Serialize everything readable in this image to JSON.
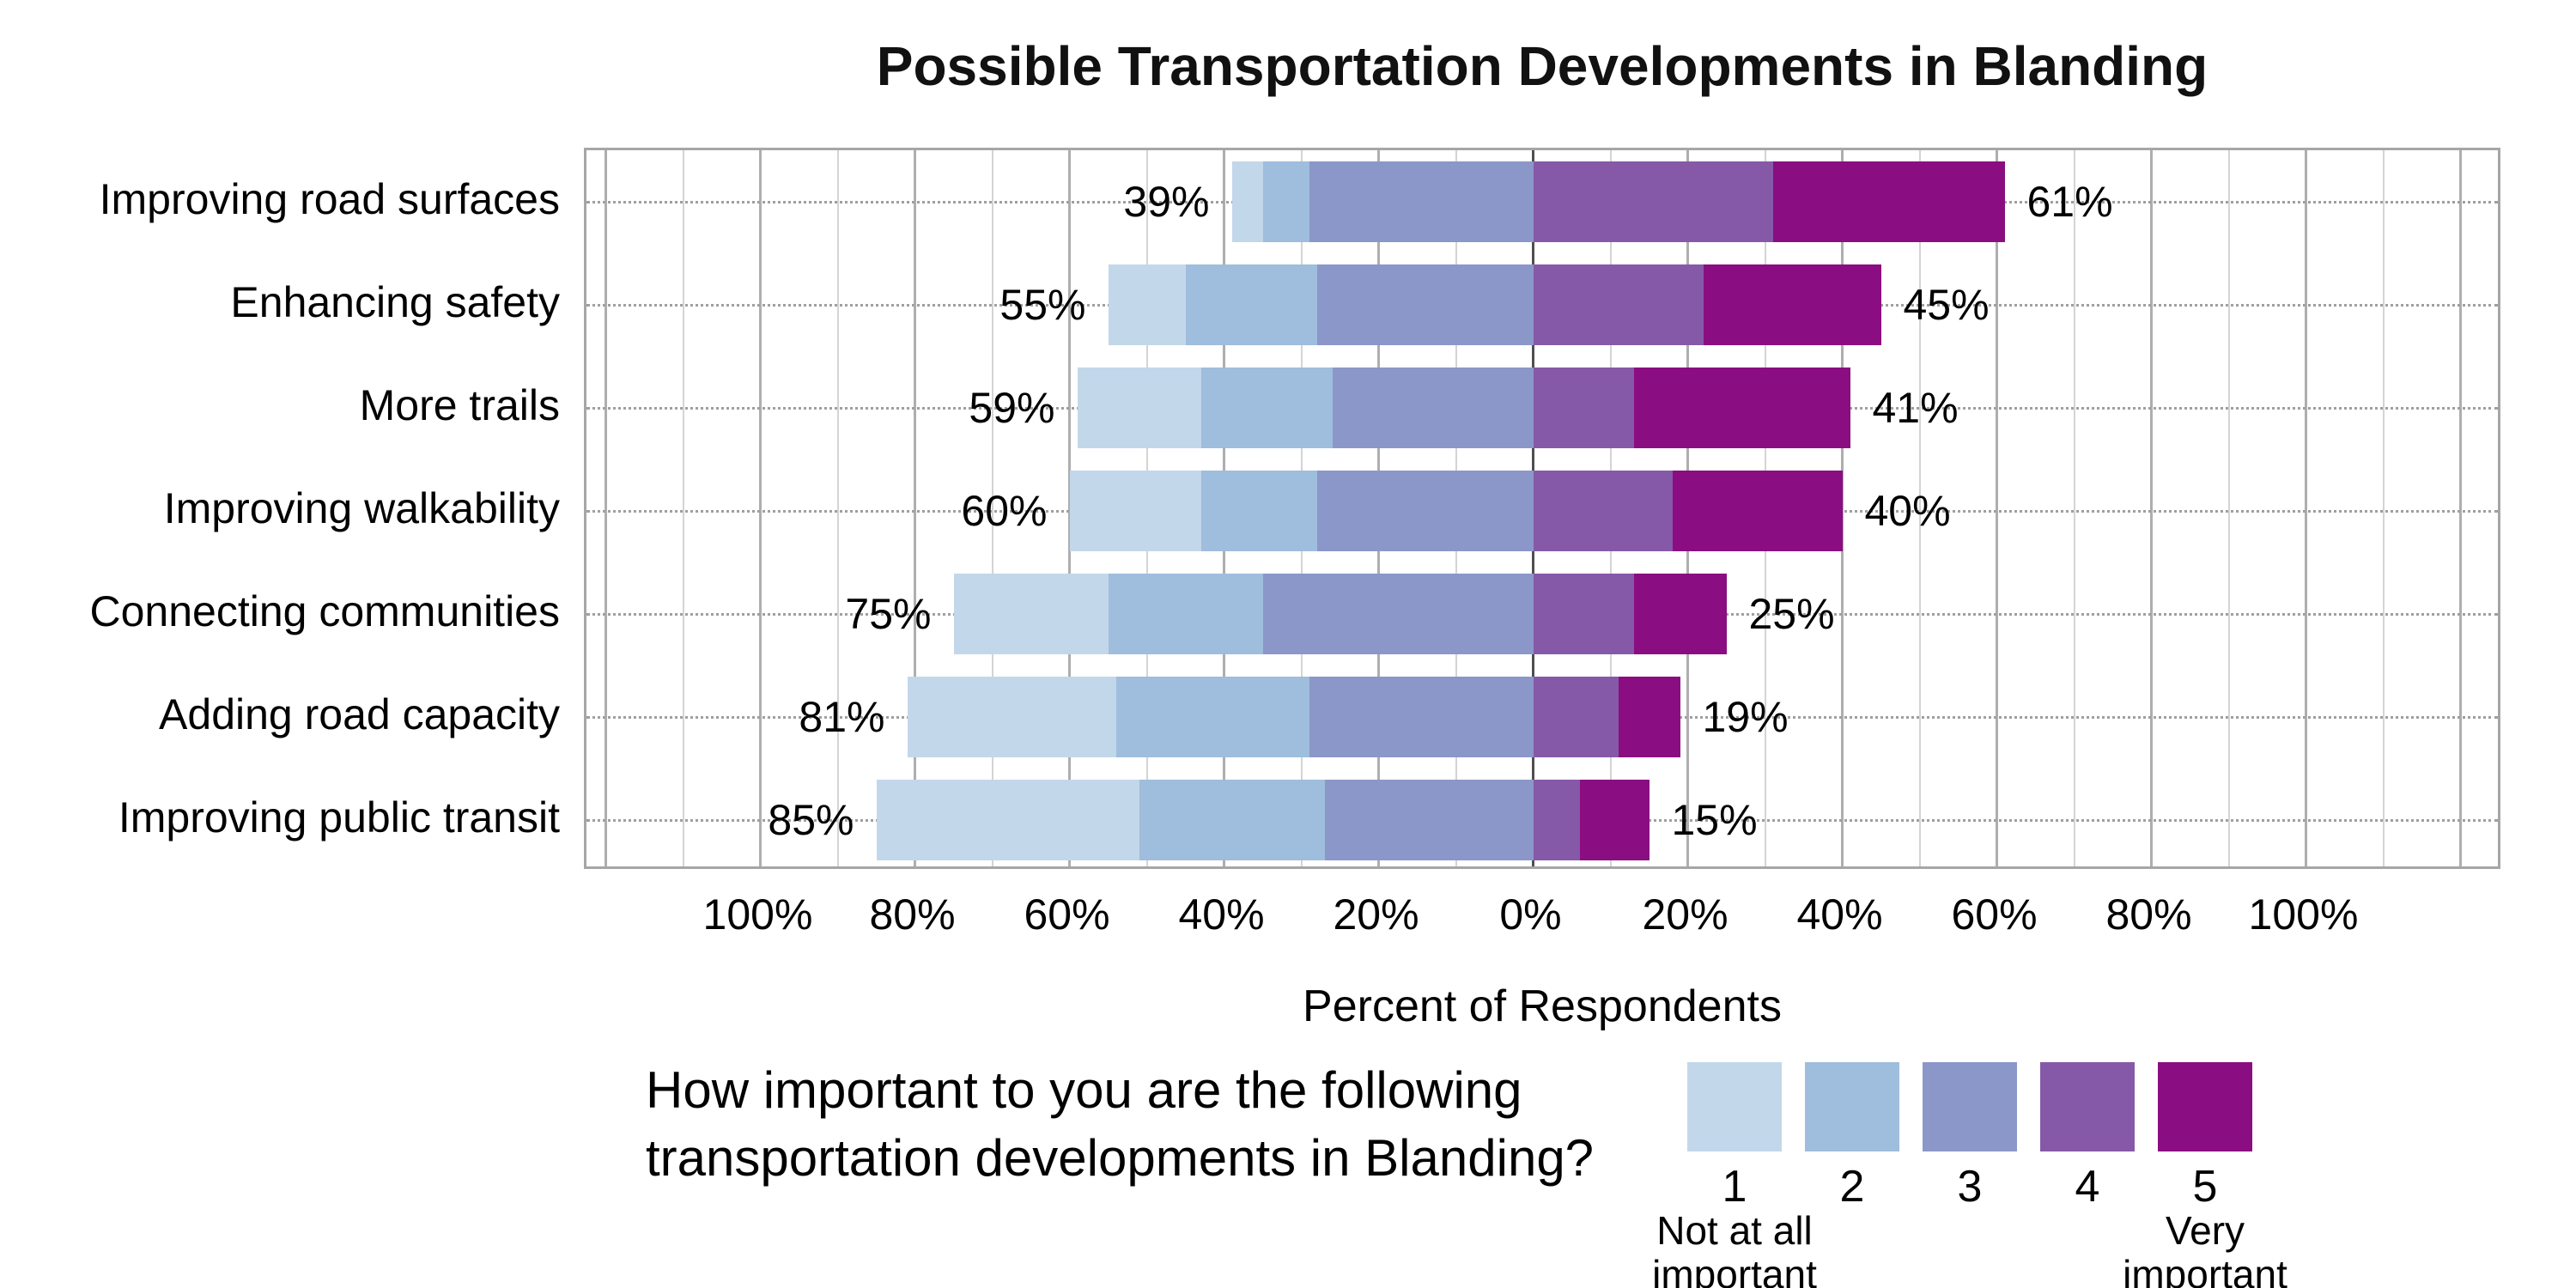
{
  "title": "Possible Transportation Developments in Blanding",
  "xlabel": "Percent of Respondents",
  "question": {
    "line1": "How important to you are the following",
    "line2": "transportation developments in Blanding?"
  },
  "legend": {
    "numbers": [
      "1",
      "2",
      "3",
      "4",
      "5"
    ],
    "min_label_line1": "Not at all",
    "min_label_line2": "important",
    "max_label_line1": "Very",
    "max_label_line2": "important"
  },
  "axis": {
    "min": -122.5,
    "max": 125.5,
    "minor_step": 10,
    "major_step": 20,
    "grid_from": -120,
    "grid_to": 120,
    "tick_values": [
      -100,
      -80,
      -60,
      -40,
      -20,
      0,
      20,
      40,
      60,
      80,
      100
    ],
    "tick_labels": [
      "100%",
      "80%",
      "60%",
      "40%",
      "20%",
      "0%",
      "20%",
      "40%",
      "60%",
      "80%",
      "100%"
    ]
  },
  "chart_data": {
    "type": "bar",
    "variant": "diverging-stacked-horizontal",
    "title": "Possible Transportation Developments in Blanding",
    "xlabel": "Percent of Respondents",
    "legend_position": "bottom-right",
    "grid": "vertical 10% minor / 20% major, dotted horizontal row guides",
    "scale": [
      "1 Not at all important",
      "2",
      "3",
      "4",
      "5 Very important"
    ],
    "colors": [
      "#c3d7ea",
      "#9fbddc",
      "#8b97c8",
      "#8659a8",
      "#8a0e81"
    ],
    "left_series": [
      "1",
      "2",
      "3"
    ],
    "right_series": [
      "4",
      "5"
    ],
    "categories": [
      "Improving road surfaces",
      "Enhancing safety",
      "More trails",
      "Improving walkability",
      "Connecting communities",
      "Adding road capacity",
      "Improving public transit"
    ],
    "rows": [
      {
        "category": "Improving road surfaces",
        "values": [
          4,
          6,
          29,
          31,
          30
        ],
        "left_total": 39,
        "right_total": 61,
        "left_label": "39%",
        "right_label": "61%"
      },
      {
        "category": "Enhancing safety",
        "values": [
          10,
          17,
          28,
          22,
          23
        ],
        "left_total": 55,
        "right_total": 45,
        "left_label": "55%",
        "right_label": "45%"
      },
      {
        "category": "More trails",
        "values": [
          16,
          17,
          26,
          13,
          28
        ],
        "left_total": 59,
        "right_total": 41,
        "left_label": "59%",
        "right_label": "41%"
      },
      {
        "category": "Improving walkability",
        "values": [
          17,
          15,
          28,
          18,
          22
        ],
        "left_total": 60,
        "right_total": 40,
        "left_label": "60%",
        "right_label": "40%"
      },
      {
        "category": "Connecting communities",
        "values": [
          20,
          20,
          35,
          13,
          12
        ],
        "left_total": 75,
        "right_total": 25,
        "left_label": "75%",
        "right_label": "25%"
      },
      {
        "category": "Adding road capacity",
        "values": [
          27,
          25,
          29,
          11,
          8
        ],
        "left_total": 81,
        "right_total": 19,
        "left_label": "81%",
        "right_label": "19%"
      },
      {
        "category": "Improving public transit",
        "values": [
          34,
          24,
          27,
          6,
          9
        ],
        "left_total": 85,
        "right_total": 15,
        "left_label": "85%",
        "right_label": "15%"
      }
    ]
  }
}
